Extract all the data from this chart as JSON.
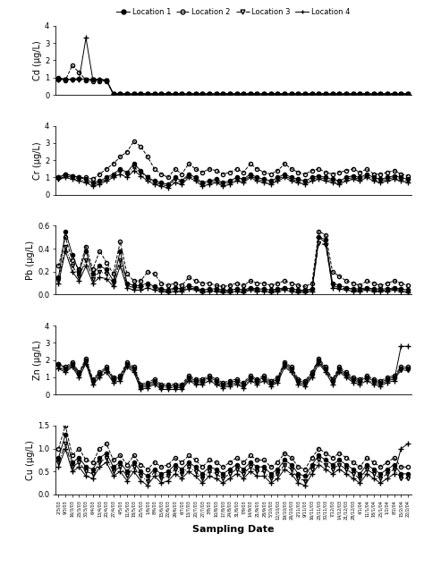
{
  "xlabel": "Sampling Date",
  "legend_labels": [
    "Location 1",
    "Location 2",
    "Location 3",
    "Location 4"
  ],
  "markers": [
    "o",
    "o",
    "v",
    "+"
  ],
  "linestyles": [
    "-",
    "--",
    "-.",
    "-"
  ],
  "fillstyles": [
    "full",
    "none",
    "none",
    "none"
  ],
  "n_points": 52,
  "panels": [
    {
      "ylabel": "Cd (μg/L)",
      "ylim": [
        0,
        4
      ],
      "yticks": [
        0,
        1,
        2,
        3,
        4
      ]
    },
    {
      "ylabel": "Cr (μg/L)",
      "ylim": [
        0,
        4
      ],
      "yticks": [
        0,
        1,
        2,
        3,
        4
      ]
    },
    {
      "ylabel": "Pb (μg/L)",
      "ylim": [
        0.0,
        0.6
      ],
      "yticks": [
        0.0,
        0.2,
        0.4,
        0.6
      ]
    },
    {
      "ylabel": "Zn (μg/L)",
      "ylim": [
        0,
        4
      ],
      "yticks": [
        0,
        1,
        2,
        3,
        4
      ]
    },
    {
      "ylabel": "Cu (μg/L)",
      "ylim": [
        0.0,
        1.5
      ],
      "yticks": [
        0.0,
        0.5,
        1.0,
        1.5
      ]
    }
  ],
  "Cd": {
    "loc1": [
      1.0,
      0.9,
      0.9,
      0.95,
      0.9,
      0.9,
      0.9,
      0.85,
      0.05,
      0.05,
      0.05,
      0.05,
      0.05,
      0.05,
      0.05,
      0.05,
      0.05,
      0.05,
      0.05,
      0.05,
      0.05,
      0.05,
      0.05,
      0.05,
      0.05,
      0.05,
      0.05,
      0.05,
      0.05,
      0.05,
      0.05,
      0.05,
      0.05,
      0.05,
      0.05,
      0.05,
      0.05,
      0.05,
      0.05,
      0.05,
      0.05,
      0.05,
      0.05,
      0.05,
      0.05,
      0.05,
      0.05,
      0.05,
      0.05,
      0.05,
      0.05,
      0.05
    ],
    "loc2": [
      0.9,
      0.85,
      1.7,
      1.3,
      0.85,
      0.8,
      0.8,
      0.8,
      0.05,
      0.05,
      0.05,
      0.05,
      0.05,
      0.05,
      0.05,
      0.05,
      0.05,
      0.05,
      0.05,
      0.05,
      0.05,
      0.05,
      0.05,
      0.05,
      0.05,
      0.05,
      0.05,
      0.05,
      0.05,
      0.05,
      0.05,
      0.05,
      0.05,
      0.05,
      0.05,
      0.05,
      0.05,
      0.05,
      0.05,
      0.05,
      0.05,
      0.05,
      0.05,
      0.05,
      0.05,
      0.05,
      0.05,
      0.05,
      0.05,
      0.05,
      0.05,
      0.05
    ],
    "loc3": [
      0.9,
      0.9,
      0.9,
      0.9,
      0.9,
      0.9,
      0.85,
      0.85,
      0.05,
      0.05,
      0.05,
      0.05,
      0.05,
      0.05,
      0.05,
      0.05,
      0.05,
      0.05,
      0.05,
      0.05,
      0.05,
      0.05,
      0.05,
      0.05,
      0.05,
      0.05,
      0.05,
      0.05,
      0.05,
      0.05,
      0.05,
      0.05,
      0.05,
      0.05,
      0.05,
      0.05,
      0.05,
      0.05,
      0.05,
      0.05,
      0.05,
      0.05,
      0.05,
      0.05,
      0.05,
      0.05,
      0.05,
      0.05,
      0.05,
      0.05,
      0.05,
      0.05
    ],
    "loc4": [
      0.9,
      0.9,
      0.9,
      0.9,
      3.3,
      0.9,
      0.9,
      0.85,
      0.05,
      0.05,
      0.05,
      0.05,
      0.05,
      0.05,
      0.05,
      0.05,
      0.05,
      0.05,
      0.05,
      0.05,
      0.05,
      0.05,
      0.05,
      0.05,
      0.05,
      0.05,
      0.05,
      0.05,
      0.05,
      0.05,
      0.05,
      0.05,
      0.05,
      0.05,
      0.05,
      0.05,
      0.05,
      0.05,
      0.05,
      0.05,
      0.05,
      0.05,
      0.05,
      0.05,
      0.05,
      0.05,
      0.05,
      0.05,
      0.05,
      0.05,
      0.05,
      0.05
    ]
  },
  "Cr": {
    "loc1": [
      1.0,
      1.2,
      1.1,
      1.0,
      0.9,
      0.7,
      0.8,
      1.0,
      1.2,
      1.5,
      1.3,
      1.8,
      1.4,
      1.0,
      0.8,
      0.7,
      0.6,
      1.0,
      0.8,
      1.2,
      1.0,
      0.7,
      0.8,
      0.9,
      0.7,
      0.8,
      1.0,
      0.9,
      1.2,
      1.0,
      0.9,
      0.8,
      1.0,
      1.2,
      1.0,
      0.9,
      0.8,
      1.0,
      1.1,
      1.0,
      0.9,
      0.8,
      1.0,
      1.1,
      1.0,
      1.2,
      1.0,
      0.9,
      1.0,
      1.1,
      1.0,
      0.9
    ],
    "loc2": [
      1.0,
      1.2,
      1.1,
      1.0,
      1.0,
      0.9,
      1.2,
      1.5,
      1.8,
      2.2,
      2.5,
      3.1,
      2.8,
      2.2,
      1.5,
      1.2,
      1.0,
      1.5,
      1.2,
      1.8,
      1.5,
      1.3,
      1.5,
      1.4,
      1.2,
      1.3,
      1.5,
      1.3,
      1.8,
      1.5,
      1.3,
      1.2,
      1.4,
      1.8,
      1.5,
      1.3,
      1.2,
      1.4,
      1.5,
      1.3,
      1.2,
      1.3,
      1.4,
      1.5,
      1.3,
      1.5,
      1.2,
      1.2,
      1.3,
      1.4,
      1.2,
      1.1
    ],
    "loc3": [
      0.9,
      1.1,
      1.0,
      0.9,
      0.8,
      0.6,
      0.7,
      0.9,
      1.1,
      1.4,
      1.2,
      1.6,
      1.3,
      1.0,
      0.7,
      0.6,
      0.5,
      0.9,
      0.7,
      1.1,
      0.9,
      0.6,
      0.7,
      0.8,
      0.6,
      0.7,
      0.9,
      0.8,
      1.1,
      0.9,
      0.8,
      0.7,
      0.9,
      1.1,
      0.9,
      0.8,
      0.7,
      0.9,
      1.0,
      0.9,
      0.8,
      0.7,
      0.9,
      1.0,
      0.9,
      1.1,
      0.9,
      0.8,
      0.9,
      1.0,
      0.9,
      0.8
    ],
    "loc4": [
      0.9,
      1.0,
      0.9,
      0.8,
      0.7,
      0.5,
      0.6,
      0.8,
      1.0,
      1.2,
      1.0,
      1.4,
      1.1,
      0.8,
      0.6,
      0.5,
      0.4,
      0.7,
      0.6,
      1.0,
      0.8,
      0.5,
      0.6,
      0.7,
      0.5,
      0.6,
      0.8,
      0.7,
      1.0,
      0.8,
      0.7,
      0.6,
      0.8,
      1.0,
      0.8,
      0.7,
      0.6,
      0.8,
      0.9,
      0.8,
      0.7,
      0.6,
      0.8,
      0.9,
      0.8,
      1.0,
      0.8,
      0.7,
      0.8,
      0.9,
      0.8,
      0.7
    ]
  },
  "Pb": {
    "loc1": [
      0.15,
      0.55,
      0.35,
      0.2,
      0.38,
      0.18,
      0.25,
      0.22,
      0.12,
      0.38,
      0.1,
      0.08,
      0.08,
      0.1,
      0.07,
      0.05,
      0.04,
      0.06,
      0.05,
      0.08,
      0.06,
      0.04,
      0.05,
      0.05,
      0.04,
      0.04,
      0.05,
      0.04,
      0.06,
      0.05,
      0.05,
      0.04,
      0.05,
      0.06,
      0.05,
      0.04,
      0.04,
      0.05,
      0.5,
      0.48,
      0.1,
      0.08,
      0.06,
      0.05,
      0.05,
      0.06,
      0.05,
      0.05,
      0.05,
      0.06,
      0.05,
      0.04
    ],
    "loc2": [
      0.25,
      0.5,
      0.3,
      0.22,
      0.42,
      0.22,
      0.38,
      0.28,
      0.18,
      0.46,
      0.18,
      0.12,
      0.12,
      0.2,
      0.18,
      0.1,
      0.08,
      0.1,
      0.08,
      0.15,
      0.12,
      0.1,
      0.1,
      0.08,
      0.07,
      0.08,
      0.1,
      0.08,
      0.12,
      0.1,
      0.1,
      0.08,
      0.1,
      0.12,
      0.1,
      0.08,
      0.07,
      0.1,
      0.55,
      0.52,
      0.2,
      0.16,
      0.12,
      0.1,
      0.08,
      0.12,
      0.1,
      0.08,
      0.1,
      0.12,
      0.1,
      0.08
    ],
    "loc3": [
      0.12,
      0.42,
      0.25,
      0.16,
      0.3,
      0.14,
      0.2,
      0.18,
      0.1,
      0.3,
      0.08,
      0.06,
      0.06,
      0.08,
      0.06,
      0.04,
      0.03,
      0.05,
      0.04,
      0.06,
      0.05,
      0.03,
      0.04,
      0.04,
      0.03,
      0.03,
      0.04,
      0.03,
      0.05,
      0.04,
      0.04,
      0.03,
      0.04,
      0.05,
      0.04,
      0.03,
      0.03,
      0.04,
      0.45,
      0.43,
      0.08,
      0.06,
      0.05,
      0.04,
      0.04,
      0.05,
      0.04,
      0.04,
      0.04,
      0.05,
      0.04,
      0.03
    ],
    "loc4": [
      0.1,
      0.38,
      0.2,
      0.12,
      0.25,
      0.1,
      0.15,
      0.14,
      0.07,
      0.25,
      0.06,
      0.04,
      0.04,
      0.06,
      0.04,
      0.03,
      0.02,
      0.03,
      0.03,
      0.05,
      0.04,
      0.02,
      0.03,
      0.03,
      0.02,
      0.02,
      0.03,
      0.02,
      0.04,
      0.03,
      0.03,
      0.02,
      0.03,
      0.04,
      0.03,
      0.02,
      0.02,
      0.03,
      0.5,
      0.45,
      0.06,
      0.05,
      0.04,
      0.03,
      0.03,
      0.04,
      0.03,
      0.03,
      0.03,
      0.04,
      0.03,
      0.02
    ]
  },
  "Zn": {
    "loc1": [
      1.8,
      1.5,
      1.8,
      1.2,
      2.0,
      0.8,
      1.2,
      1.5,
      0.9,
      1.0,
      1.8,
      1.5,
      0.5,
      0.6,
      0.8,
      0.5,
      0.5,
      0.5,
      0.5,
      1.0,
      0.8,
      0.8,
      1.0,
      0.8,
      0.6,
      0.7,
      0.8,
      0.6,
      1.0,
      0.8,
      1.0,
      0.7,
      0.9,
      1.8,
      1.5,
      0.8,
      0.7,
      1.2,
      2.0,
      1.5,
      0.8,
      1.5,
      1.2,
      0.9,
      0.8,
      1.0,
      0.8,
      0.7,
      0.9,
      1.0,
      1.5,
      1.5
    ],
    "loc2": [
      1.8,
      1.6,
      1.9,
      1.3,
      2.1,
      0.9,
      1.3,
      1.6,
      1.0,
      1.1,
      1.9,
      1.6,
      0.6,
      0.7,
      0.9,
      0.6,
      0.6,
      0.6,
      0.6,
      1.1,
      0.9,
      0.9,
      1.1,
      0.9,
      0.7,
      0.8,
      0.9,
      0.7,
      1.1,
      0.9,
      1.1,
      0.8,
      1.0,
      1.9,
      1.6,
      0.9,
      0.8,
      1.3,
      2.1,
      1.6,
      0.9,
      1.6,
      1.3,
      1.0,
      0.9,
      1.1,
      0.9,
      0.8,
      1.0,
      1.1,
      1.6,
      1.6
    ],
    "loc3": [
      1.6,
      1.4,
      1.7,
      1.1,
      1.9,
      0.7,
      1.1,
      1.4,
      0.8,
      0.9,
      1.7,
      1.4,
      0.4,
      0.5,
      0.7,
      0.4,
      0.4,
      0.4,
      0.4,
      0.9,
      0.7,
      0.7,
      0.9,
      0.7,
      0.5,
      0.6,
      0.7,
      0.5,
      0.9,
      0.7,
      0.9,
      0.6,
      0.8,
      1.7,
      1.4,
      0.7,
      0.6,
      1.1,
      1.9,
      1.4,
      0.7,
      1.4,
      1.1,
      0.8,
      0.7,
      0.9,
      0.7,
      0.6,
      0.8,
      0.9,
      1.4,
      1.4
    ],
    "loc4": [
      1.5,
      1.3,
      1.6,
      1.0,
      1.8,
      0.6,
      1.0,
      1.3,
      0.7,
      0.8,
      1.6,
      1.3,
      0.3,
      0.4,
      0.6,
      0.3,
      0.3,
      0.3,
      0.3,
      0.8,
      0.6,
      0.6,
      0.8,
      0.6,
      0.4,
      0.5,
      0.6,
      0.4,
      0.8,
      0.6,
      0.8,
      0.5,
      0.7,
      1.6,
      1.3,
      0.6,
      0.5,
      1.0,
      1.8,
      1.3,
      0.6,
      1.3,
      1.0,
      0.7,
      0.6,
      0.8,
      0.6,
      0.5,
      0.7,
      0.8,
      2.8,
      2.8
    ]
  },
  "Cu": {
    "loc1": [
      0.8,
      1.3,
      0.7,
      0.8,
      0.6,
      0.55,
      0.8,
      0.9,
      0.6,
      0.7,
      0.5,
      0.7,
      0.5,
      0.4,
      0.55,
      0.45,
      0.5,
      0.65,
      0.55,
      0.7,
      0.6,
      0.45,
      0.6,
      0.55,
      0.45,
      0.55,
      0.65,
      0.55,
      0.7,
      0.6,
      0.6,
      0.45,
      0.55,
      0.75,
      0.65,
      0.45,
      0.4,
      0.65,
      0.85,
      0.75,
      0.65,
      0.75,
      0.65,
      0.55,
      0.45,
      0.65,
      0.55,
      0.45,
      0.55,
      0.65,
      0.45,
      0.45
    ],
    "loc2": [
      1.0,
      1.5,
      0.85,
      1.0,
      0.75,
      0.7,
      1.0,
      1.1,
      0.75,
      0.85,
      0.65,
      0.85,
      0.65,
      0.55,
      0.7,
      0.6,
      0.65,
      0.8,
      0.7,
      0.85,
      0.75,
      0.6,
      0.75,
      0.7,
      0.6,
      0.7,
      0.8,
      0.7,
      0.85,
      0.75,
      0.75,
      0.6,
      0.7,
      0.9,
      0.8,
      0.6,
      0.55,
      0.8,
      1.0,
      0.9,
      0.8,
      0.9,
      0.8,
      0.7,
      0.6,
      0.8,
      0.7,
      0.6,
      0.7,
      0.8,
      0.6,
      0.6
    ],
    "loc3": [
      0.7,
      1.1,
      0.6,
      0.7,
      0.5,
      0.45,
      0.7,
      0.8,
      0.5,
      0.6,
      0.4,
      0.6,
      0.4,
      0.3,
      0.5,
      0.35,
      0.4,
      0.55,
      0.45,
      0.6,
      0.5,
      0.35,
      0.5,
      0.45,
      0.35,
      0.45,
      0.55,
      0.45,
      0.6,
      0.5,
      0.5,
      0.35,
      0.45,
      0.65,
      0.55,
      0.35,
      0.3,
      0.55,
      0.75,
      0.65,
      0.55,
      0.65,
      0.55,
      0.45,
      0.35,
      0.55,
      0.45,
      0.35,
      0.45,
      0.55,
      0.35,
      0.35
    ],
    "loc4": [
      0.6,
      1.0,
      0.5,
      0.6,
      0.4,
      0.35,
      0.6,
      0.7,
      0.4,
      0.5,
      0.3,
      0.5,
      0.3,
      0.2,
      0.4,
      0.25,
      0.3,
      0.45,
      0.35,
      0.5,
      0.4,
      0.25,
      0.4,
      0.35,
      0.25,
      0.35,
      0.45,
      0.35,
      0.5,
      0.4,
      0.4,
      0.25,
      0.35,
      0.55,
      0.45,
      0.25,
      0.2,
      0.45,
      0.65,
      0.55,
      0.45,
      0.55,
      0.45,
      0.35,
      0.25,
      0.45,
      0.35,
      0.25,
      0.35,
      0.45,
      1.0,
      1.1
    ]
  },
  "x_labels": [
    "2/3/03",
    "9/3/03",
    "16/3/03",
    "23/3/03",
    "30/3/03",
    "6/4/03",
    "13/4/03",
    "20/4/03",
    "27/4/03",
    "4/5/03",
    "11/5/03",
    "18/5/03",
    "25/5/03",
    "1/6/03",
    "8/6/03",
    "15/6/03",
    "22/6/03",
    "29/6/03",
    "6/7/03",
    "13/7/03",
    "20/7/03",
    "27/7/03",
    "3/8/03",
    "10/8/03",
    "17/8/03",
    "24/8/03",
    "31/8/03",
    "7/9/03",
    "14/9/03",
    "21/9/03",
    "28/9/03",
    "5/10/03",
    "12/10/03",
    "19/10/03",
    "26/10/03",
    "2/11/03",
    "9/11/03",
    "16/11/03",
    "23/11/03",
    "30/11/03",
    "7/12/03",
    "14/12/03",
    "21/12/03",
    "28/12/03",
    "4/1/04",
    "11/1/04",
    "18/1/04",
    "25/1/04",
    "1/2/04",
    "8/2/04",
    "15/2/04",
    "22/2/04"
  ]
}
